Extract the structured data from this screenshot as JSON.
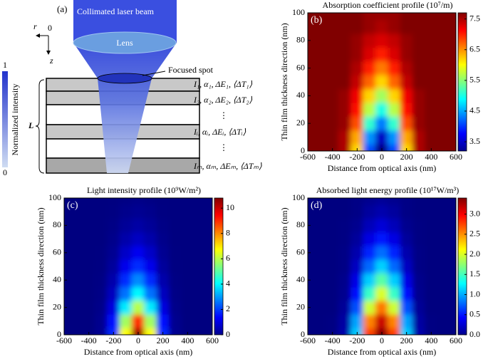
{
  "diagram": {
    "panel_label": "(a)",
    "beam_label": "Collimated laser beam",
    "lens_label": "Lens",
    "spot_label": "Focused spot",
    "axis_r": "r",
    "axis_origin": "0",
    "axis_z": "z",
    "thickness_label": "L",
    "intensity_bar": {
      "label": "Normalized intensity",
      "max": "1",
      "min": "0"
    },
    "layers": [
      "I₁, α₁, ΔE₁, ⟨ΔT₁⟩",
      "I₂, α₂, ΔE₂, ⟨ΔT₂⟩",
      "⋮",
      "Iᵢ, αᵢ, ΔEᵢ, ⟨ΔTᵢ⟩",
      "⋮",
      "Iₘ, αₘ, ΔEₘ, ⟨ΔTₘ⟩"
    ]
  },
  "chart_data": [
    {
      "type": "heatmap",
      "title": "Absorption coefficient profile (10⁷/m)",
      "panel_label": "(b)",
      "x_label": "Distance from optical axis (nm)",
      "y_label": "Thin film thickness direction (nm)",
      "x": [
        -600,
        -500,
        -400,
        -300,
        -200,
        -100,
        0,
        100,
        200,
        300,
        400,
        500,
        600
      ],
      "y": [
        0,
        10,
        20,
        30,
        40,
        50,
        60,
        70,
        80,
        90,
        100
      ],
      "z": [
        [
          7.7,
          7.7,
          7.7,
          7.5,
          6.2,
          4.1,
          3.2,
          4.1,
          6.2,
          7.5,
          7.7,
          7.7,
          7.7
        ],
        [
          7.7,
          7.7,
          7.7,
          7.5,
          6.4,
          4.4,
          3.5,
          4.4,
          6.4,
          7.5,
          7.7,
          7.7,
          7.7
        ],
        [
          7.7,
          7.7,
          7.7,
          7.6,
          6.8,
          5.1,
          4.3,
          5.1,
          6.8,
          7.6,
          7.7,
          7.7,
          7.7
        ],
        [
          7.7,
          7.7,
          7.7,
          7.6,
          7.1,
          5.7,
          5,
          5.7,
          7.1,
          7.6,
          7.7,
          7.7,
          7.7
        ],
        [
          7.7,
          7.7,
          7.7,
          7.6,
          7.2,
          6.2,
          5.6,
          6.2,
          7.2,
          7.6,
          7.7,
          7.7,
          7.7
        ],
        [
          7.7,
          7.7,
          7.7,
          7.7,
          7.4,
          6.7,
          6.2,
          6.7,
          7.4,
          7.7,
          7.7,
          7.7,
          7.7
        ],
        [
          7.7,
          7.7,
          7.7,
          7.7,
          7.5,
          7,
          6.6,
          7,
          7.5,
          7.7,
          7.7,
          7.7,
          7.7
        ],
        [
          7.7,
          7.7,
          7.7,
          7.7,
          7.6,
          7.3,
          7,
          7.3,
          7.6,
          7.7,
          7.7,
          7.7,
          7.7
        ],
        [
          7.7,
          7.7,
          7.7,
          7.7,
          7.6,
          7.4,
          7.3,
          7.4,
          7.6,
          7.7,
          7.7,
          7.7,
          7.7
        ],
        [
          7.7,
          7.7,
          7.7,
          7.7,
          7.7,
          7.6,
          7.5,
          7.6,
          7.7,
          7.7,
          7.7,
          7.7,
          7.7
        ],
        [
          7.7,
          7.7,
          7.7,
          7.7,
          7.7,
          7.6,
          7.6,
          7.6,
          7.7,
          7.7,
          7.7,
          7.7,
          7.7
        ]
      ],
      "xlim": [
        -600,
        600
      ],
      "ylim": [
        0,
        100
      ],
      "xticks": [
        -600,
        -400,
        -200,
        0,
        200,
        400,
        600
      ],
      "yticks": [
        0,
        20,
        40,
        60,
        80,
        100
      ],
      "clim": [
        3.2,
        7.7
      ],
      "cticks": [
        3.5,
        4.5,
        5.5,
        6.5,
        7.5
      ],
      "colormap": "jet"
    },
    {
      "type": "heatmap",
      "title": "Light intensity profile (10⁹W/m²)",
      "panel_label": "(c)",
      "x_label": "Distance from optical axis (nm)",
      "y_label": "Thin film thickness direction (nm)",
      "x": [
        -600,
        -500,
        -400,
        -300,
        -200,
        -100,
        0,
        100,
        200,
        300,
        400,
        500,
        600
      ],
      "y": [
        0,
        10,
        20,
        30,
        40,
        50,
        60,
        70,
        80,
        90,
        100
      ],
      "z": [
        [
          0,
          0,
          0.01,
          0.19,
          1.77,
          6.73,
          10.5,
          6.73,
          1.77,
          0.19,
          0.01,
          0,
          0
        ],
        [
          0,
          0,
          0.01,
          0.16,
          1.52,
          5.77,
          9,
          5.77,
          1.52,
          0.16,
          0.01,
          0,
          0
        ],
        [
          0,
          0,
          0,
          0.11,
          1.01,
          3.85,
          6,
          3.85,
          1.01,
          0.11,
          0,
          0,
          0
        ],
        [
          0,
          0,
          0,
          0.07,
          0.68,
          2.56,
          4,
          2.56,
          0.68,
          0.07,
          0,
          0,
          0
        ],
        [
          0,
          0,
          0,
          0.05,
          0.47,
          1.79,
          2.8,
          1.79,
          0.47,
          0.05,
          0,
          0,
          0
        ],
        [
          0,
          0,
          0,
          0.03,
          0.3,
          1.15,
          1.8,
          1.15,
          0.3,
          0.03,
          0,
          0,
          0
        ],
        [
          0,
          0,
          0,
          0.02,
          0.2,
          0.77,
          1.2,
          0.77,
          0.2,
          0.02,
          0,
          0,
          0
        ],
        [
          0,
          0,
          0,
          0.01,
          0.12,
          0.45,
          0.7,
          0.45,
          0.12,
          0.01,
          0,
          0,
          0
        ],
        [
          0,
          0,
          0,
          0.01,
          0.07,
          0.26,
          0.4,
          0.26,
          0.07,
          0.01,
          0,
          0,
          0
        ],
        [
          0,
          0,
          0,
          0,
          0.03,
          0.13,
          0.2,
          0.13,
          0.03,
          0,
          0,
          0,
          0
        ],
        [
          0,
          0,
          0,
          0,
          0.02,
          0.06,
          0.1,
          0.06,
          0.02,
          0,
          0,
          0,
          0
        ]
      ],
      "xlim": [
        -600,
        600
      ],
      "ylim": [
        0,
        100
      ],
      "xticks": [
        -600,
        -400,
        -200,
        0,
        200,
        400,
        600
      ],
      "yticks": [
        0,
        20,
        40,
        60,
        80,
        100
      ],
      "clim": [
        0,
        10.8
      ],
      "cticks": [
        0,
        2,
        4,
        6,
        8,
        10
      ],
      "colormap": "jet"
    },
    {
      "type": "heatmap",
      "title": "Absorbed light energy profile (10¹⁷W/m³)",
      "panel_label": "(d)",
      "x_label": "Distance from optical axis (nm)",
      "y_label": "Thin film thickness direction (nm)",
      "x": [
        -600,
        -500,
        -400,
        -300,
        -200,
        -100,
        0,
        100,
        200,
        300,
        400,
        500,
        600
      ],
      "y": [
        0,
        10,
        20,
        30,
        40,
        50,
        60,
        70,
        80,
        90,
        100
      ],
      "z": [
        [
          0,
          0,
          0.01,
          0.14,
          1.1,
          2.76,
          3.36,
          2.76,
          1.1,
          0.14,
          0.01,
          0,
          0
        ],
        [
          0,
          0,
          0.01,
          0.12,
          0.97,
          2.54,
          3.15,
          2.54,
          0.97,
          0.12,
          0.01,
          0,
          0
        ],
        [
          0,
          0,
          0,
          0.08,
          0.69,
          1.96,
          2.58,
          1.96,
          0.69,
          0.08,
          0,
          0,
          0
        ],
        [
          0,
          0,
          0,
          0.05,
          0.48,
          1.46,
          2,
          1.46,
          0.48,
          0.05,
          0,
          0,
          0
        ],
        [
          0,
          0,
          0,
          0.04,
          0.34,
          1.11,
          1.57,
          1.11,
          0.34,
          0.04,
          0,
          0,
          0
        ],
        [
          0,
          0,
          0,
          0.02,
          0.22,
          0.77,
          1.12,
          0.77,
          0.22,
          0.02,
          0,
          0,
          0
        ],
        [
          0,
          0,
          0,
          0.02,
          0.15,
          0.54,
          0.79,
          0.54,
          0.15,
          0.02,
          0,
          0,
          0
        ],
        [
          0,
          0,
          0,
          0.01,
          0.09,
          0.33,
          0.49,
          0.33,
          0.09,
          0.01,
          0,
          0,
          0
        ],
        [
          0,
          0,
          0,
          0.01,
          0.05,
          0.19,
          0.29,
          0.19,
          0.05,
          0.01,
          0,
          0,
          0
        ],
        [
          0,
          0,
          0,
          0,
          0.02,
          0.1,
          0.15,
          0.1,
          0.02,
          0,
          0,
          0,
          0
        ],
        [
          0,
          0,
          0,
          0,
          0.02,
          0.05,
          0.08,
          0.05,
          0.02,
          0,
          0,
          0,
          0
        ]
      ],
      "xlim": [
        -600,
        600
      ],
      "ylim": [
        0,
        100
      ],
      "xticks": [
        -600,
        -400,
        -200,
        0,
        200,
        400,
        600
      ],
      "yticks": [
        0,
        20,
        40,
        60,
        80,
        100
      ],
      "clim": [
        0,
        3.4
      ],
      "cticks": [
        {
          "value": 0,
          "label": "0.0"
        },
        0.5,
        {
          "value": 1,
          "label": "1.0"
        },
        1.5,
        {
          "value": 2,
          "label": "2.0"
        },
        2.5,
        {
          "value": 3,
          "label": "3.0"
        }
      ],
      "colormap": "jet"
    }
  ]
}
